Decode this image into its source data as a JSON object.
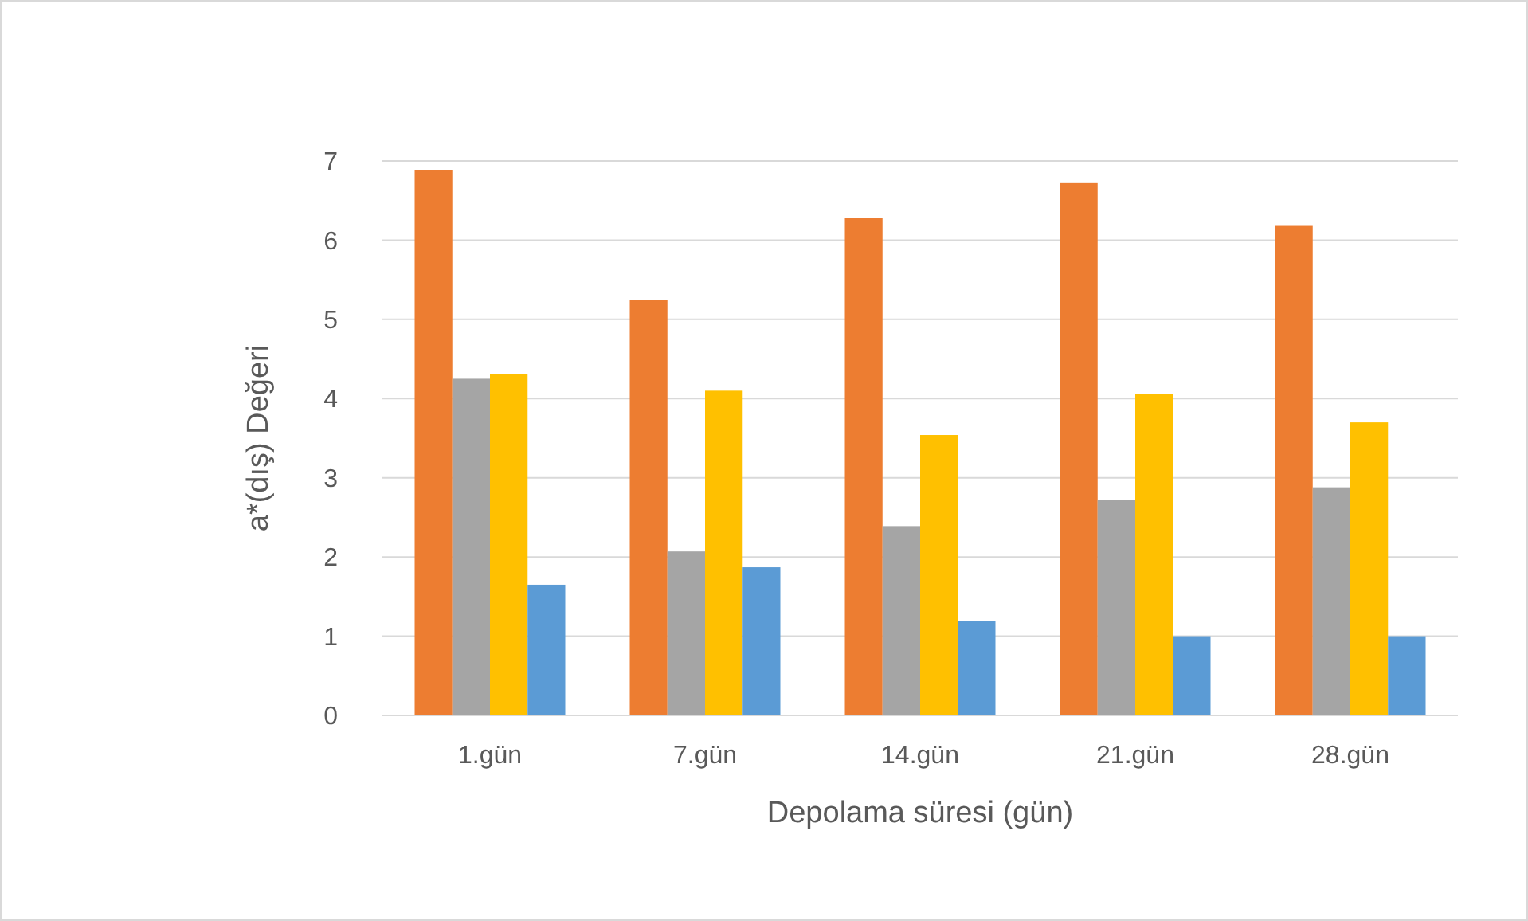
{
  "chart_data": {
    "type": "bar",
    "xlabel": "Depolama süresi (gün)",
    "ylabel": "a*(dış) Değeri",
    "categories": [
      "1.gün",
      "7.gün",
      "14.gün",
      "21.gün",
      "28.gün"
    ],
    "series": [
      {
        "color": "#ed7d31",
        "values": [
          6.88,
          5.25,
          6.28,
          6.72,
          6.18
        ]
      },
      {
        "color": "#a5a5a5",
        "values": [
          4.25,
          2.07,
          2.39,
          2.72,
          2.88
        ]
      },
      {
        "color": "#ffc000",
        "values": [
          4.31,
          4.1,
          3.54,
          4.06,
          3.7
        ]
      },
      {
        "color": "#5b9bd5",
        "values": [
          1.65,
          1.87,
          1.19,
          1.0,
          1.0
        ]
      }
    ],
    "ylim": [
      0,
      7
    ],
    "yticks": [
      0,
      1,
      2,
      3,
      4,
      5,
      6,
      7
    ],
    "grid": "y"
  }
}
